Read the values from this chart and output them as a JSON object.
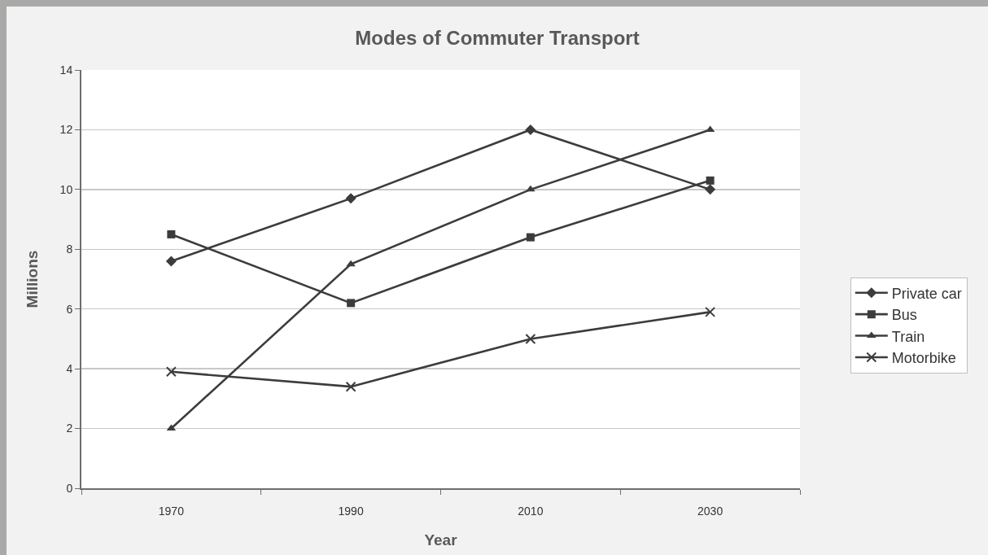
{
  "chart_data": {
    "type": "line",
    "title": "Modes of Commuter Transport",
    "xlabel": "Year",
    "ylabel": "Millions",
    "categories": [
      "1970",
      "1990",
      "2010",
      "2030"
    ],
    "series": [
      {
        "name": "Private car",
        "color": "#3c3c3c",
        "marker": "diamond",
        "values": [
          7.6,
          9.7,
          12,
          10
        ]
      },
      {
        "name": "Bus",
        "color": "#3c3c3c",
        "marker": "square",
        "values": [
          8.5,
          6.2,
          8.4,
          10.3
        ]
      },
      {
        "name": "Train",
        "color": "#3c3c3c",
        "marker": "triangle",
        "values": [
          2,
          7.5,
          10,
          12
        ]
      },
      {
        "name": "Motorbike",
        "color": "#3c3c3c",
        "marker": "cross",
        "values": [
          3.9,
          3.4,
          5,
          5.9
        ]
      }
    ],
    "ylim": [
      0,
      14
    ],
    "yticks": [
      0,
      2,
      4,
      6,
      8,
      10,
      12,
      14
    ],
    "grid": "y",
    "legend": "right",
    "line_style": "solid"
  }
}
